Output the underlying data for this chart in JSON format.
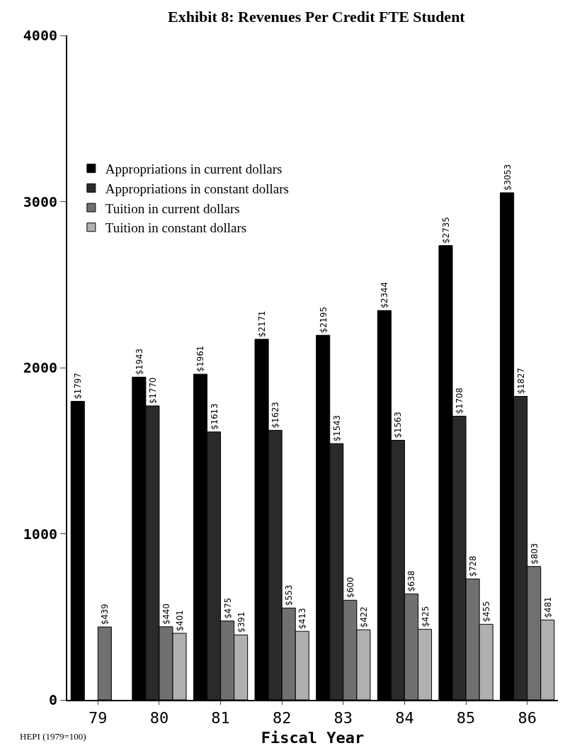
{
  "chart_data": {
    "type": "bar",
    "title": "Exhibit 8: Revenues Per Credit FTE Student",
    "xlabel": "Fiscal Year",
    "categories": [
      "79",
      "80",
      "81",
      "82",
      "83",
      "84",
      "85",
      "86"
    ],
    "series": [
      {
        "name": "Appropriations in current dollars",
        "color": "#000000",
        "values": [
          1797,
          1943,
          1961,
          2171,
          2195,
          2344,
          2735,
          3053
        ],
        "value_labels": [
          "$1797",
          "$1943",
          "$1961",
          "$2171",
          "$2195",
          "$2344",
          "$2735",
          "$3053"
        ]
      },
      {
        "name": "Appropriations in constant dollars",
        "color": "#2a2a2a",
        "values": [
          null,
          1770,
          1613,
          1623,
          1543,
          1563,
          1708,
          1827
        ],
        "value_labels": [
          null,
          "$1770",
          "$1613",
          "$1623",
          "$1543",
          "$1563",
          "$1708",
          "$1827"
        ]
      },
      {
        "name": "Tuition in current dollars",
        "color": "#707070",
        "values": [
          439,
          440,
          475,
          553,
          600,
          638,
          728,
          803
        ],
        "value_labels": [
          "$439",
          "$440",
          "$475",
          "$553",
          "$600",
          "$638",
          "$728",
          "$803"
        ]
      },
      {
        "name": "Tuition in constant dollars",
        "color": "#b0b0b0",
        "values": [
          null,
          401,
          391,
          413,
          422,
          425,
          455,
          481
        ],
        "value_labels": [
          null,
          "$401",
          "$391",
          "$413",
          "$422",
          "$425",
          "$455",
          "$481"
        ]
      }
    ],
    "ylim": [
      0,
      4000
    ],
    "yticks": [
      0,
      1000,
      2000,
      3000,
      4000
    ],
    "grid": false,
    "legend": "top left",
    "annotations": [
      "HEPI (1979=100)"
    ]
  }
}
